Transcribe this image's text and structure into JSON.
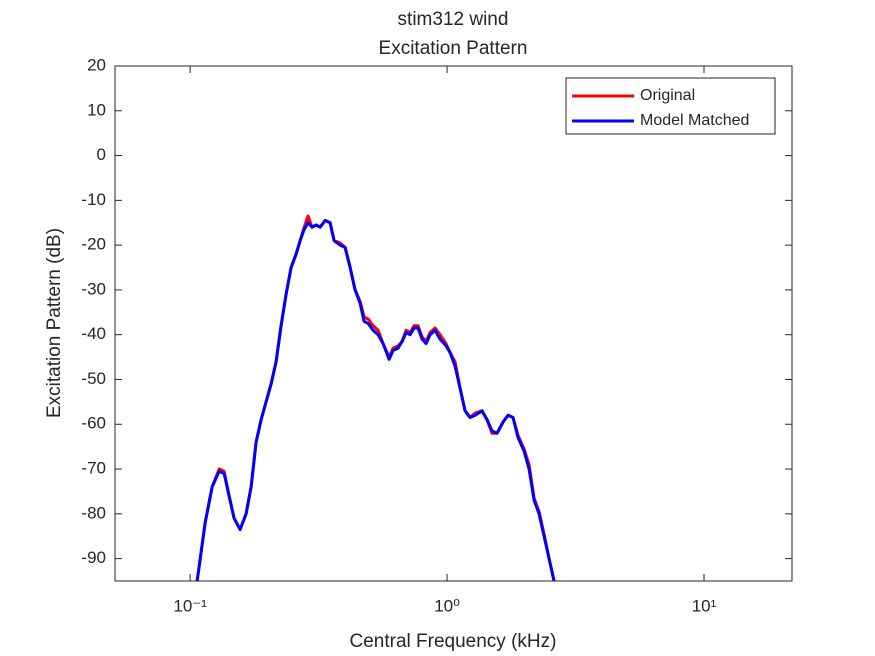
{
  "chart_data": {
    "type": "line",
    "title": "stim312 wind",
    "subtitle": "Excitation Pattern",
    "xlabel": "Central Frequency (kHz)",
    "ylabel": "Excitation Pattern (dB)",
    "xscale": "log",
    "xlim": [
      0.051,
      22
    ],
    "ylim": [
      -95,
      20
    ],
    "xticks": [
      {
        "value": 0.1,
        "label": "10⁻¹"
      },
      {
        "value": 1,
        "label": "10⁰"
      },
      {
        "value": 10,
        "label": "10¹"
      }
    ],
    "yticks": [
      -90,
      -80,
      -70,
      -60,
      -50,
      -40,
      -30,
      -20,
      -10,
      0,
      10,
      20
    ],
    "grid": false,
    "legend": "top-right",
    "x": [
      0.1065,
      0.1144,
      0.1218,
      0.1297,
      0.1356,
      0.1418,
      0.1483,
      0.1565,
      0.1651,
      0.1727,
      0.1806,
      0.1889,
      0.1975,
      0.2066,
      0.2161,
      0.2259,
      0.2363,
      0.2471,
      0.2585,
      0.268,
      0.2778,
      0.2878,
      0.2984,
      0.3093,
      0.3205,
      0.3352,
      0.3505,
      0.3634,
      0.3835,
      0.4011,
      0.4195,
      0.4385,
      0.4585,
      0.4754,
      0.4929,
      0.5154,
      0.5389,
      0.5636,
      0.5947,
      0.6165,
      0.6447,
      0.6684,
      0.6928,
      0.7178,
      0.7438,
      0.771,
      0.7994,
      0.8286,
      0.8587,
      0.8982,
      0.9393,
      0.9911,
      1.027,
      1.074,
      1.124,
      1.175,
      1.229,
      1.285,
      1.368,
      1.431,
      1.496,
      1.565,
      1.652,
      1.727,
      1.806,
      1.889,
      1.994,
      2.085,
      2.181,
      2.28,
      2.385,
      2.494,
      2.608
    ],
    "series": [
      {
        "name": "Original",
        "color": "#ff0000",
        "values": [
          -95,
          -82,
          -74,
          -70,
          -70.5,
          -76,
          -81,
          -83.5,
          -80,
          -74,
          -64,
          -59,
          -55,
          -51,
          -46,
          -38,
          -31,
          -25,
          -22,
          -19,
          -16,
          -13.5,
          -16,
          -15.5,
          -16,
          -14.5,
          -15,
          -19,
          -19.5,
          -20.5,
          -25,
          -30,
          -32.5,
          -36,
          -36.5,
          -38,
          -39,
          -42,
          -45,
          -43,
          -42.5,
          -41.5,
          -39,
          -39.5,
          -38,
          -38,
          -40.5,
          -41.5,
          -39.5,
          -38.5,
          -40,
          -42,
          -44,
          -46,
          -52,
          -57,
          -58.5,
          -57.5,
          -57,
          -59,
          -62,
          -62,
          -59.5,
          -58,
          -58.5,
          -62.5,
          -65.5,
          -69,
          -76.5,
          -79.5,
          -84.5,
          -90,
          -95
        ]
      },
      {
        "name": "Model Matched",
        "color": "#0000ff",
        "values": [
          -95,
          -82,
          -74,
          -70.5,
          -71,
          -76,
          -81,
          -83.5,
          -80,
          -74,
          -64,
          -59,
          -55,
          -51,
          -46,
          -38,
          -31,
          -25,
          -22,
          -19,
          -16.5,
          -15,
          -16,
          -15.5,
          -16,
          -14.5,
          -15,
          -19,
          -20,
          -20.5,
          -25,
          -30,
          -33,
          -37,
          -37.5,
          -39,
          -40,
          -42,
          -45.5,
          -43.5,
          -43,
          -41.5,
          -39.5,
          -40,
          -38.5,
          -38.5,
          -41,
          -42,
          -40,
          -39,
          -41,
          -42.5,
          -44,
          -47,
          -52,
          -57,
          -58.5,
          -58,
          -57,
          -59,
          -61.5,
          -62,
          -59.5,
          -58,
          -58.5,
          -63,
          -66,
          -70,
          -77,
          -80,
          -85,
          -90,
          -95
        ]
      }
    ]
  }
}
